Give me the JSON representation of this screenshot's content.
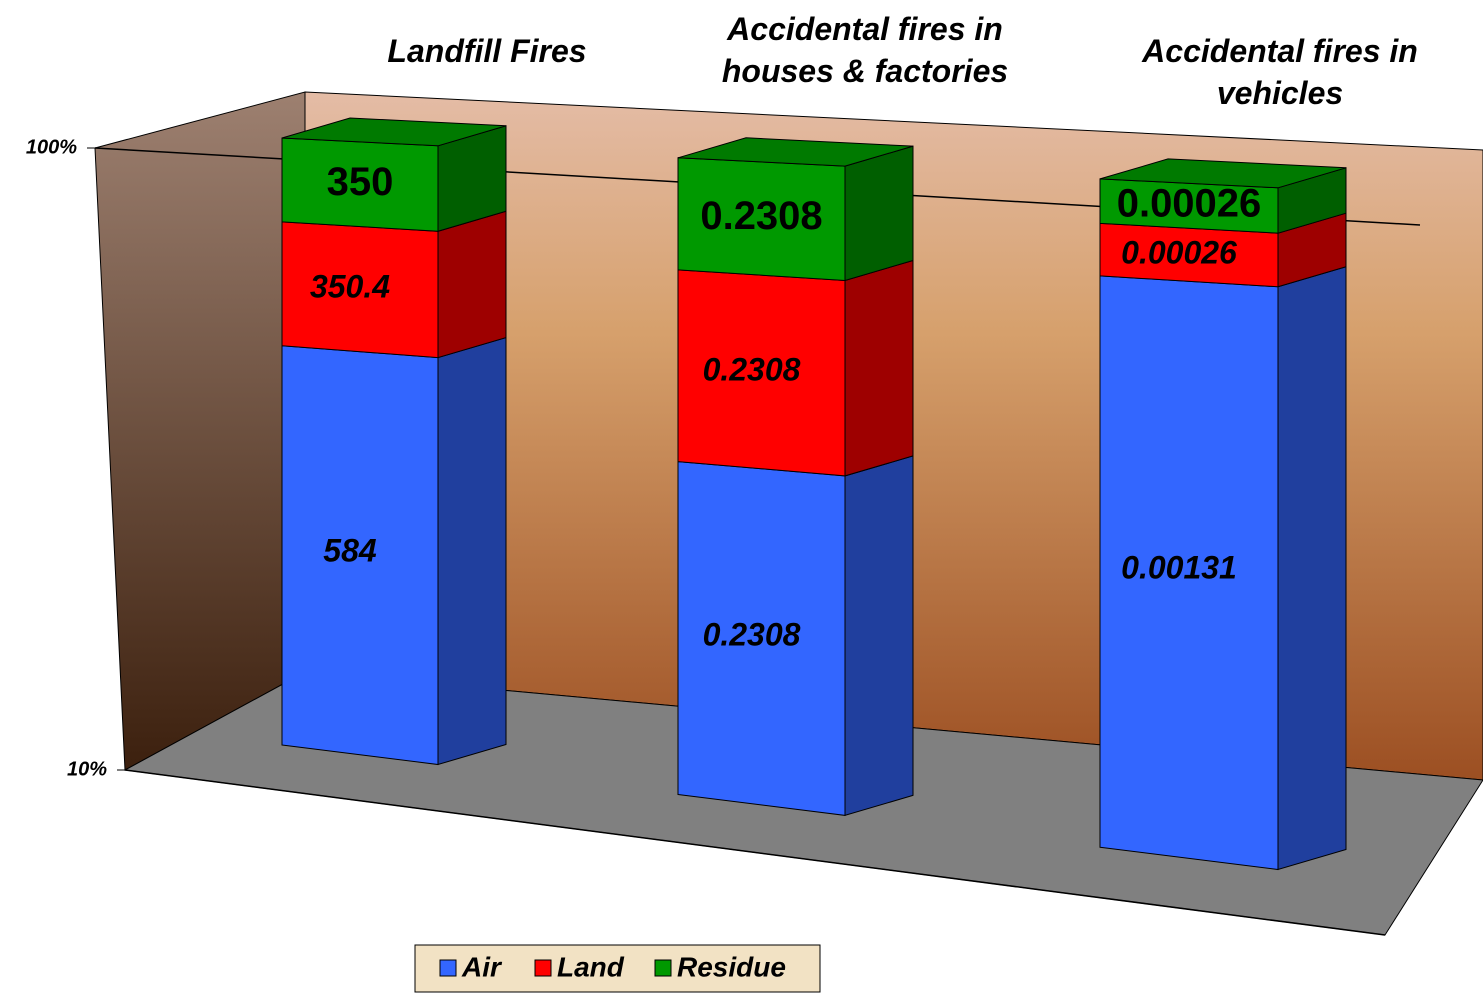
{
  "chart_data": {
    "type": "bar3d",
    "stacked": "percent",
    "categories": [
      "Landfill Fires",
      "Accidental fires in houses & factories",
      "Accidental fires in vehicles"
    ],
    "series": [
      {
        "name": "Air",
        "color": "#3366ff",
        "values": [
          584,
          0.2308,
          0.00131
        ]
      },
      {
        "name": "Land",
        "color": "#ff0000",
        "values": [
          350.4,
          0.2308,
          0.00026
        ]
      },
      {
        "name": "Residue",
        "color": "#009900",
        "values": [
          350,
          0.2308,
          0.00026
        ]
      }
    ],
    "ylim": [
      10,
      100
    ],
    "log": true,
    "yticks": [
      {
        "value": 10,
        "label": "10%"
      },
      {
        "value": 100,
        "label": "100%"
      }
    ],
    "grid": true,
    "legend": "bottom"
  }
}
